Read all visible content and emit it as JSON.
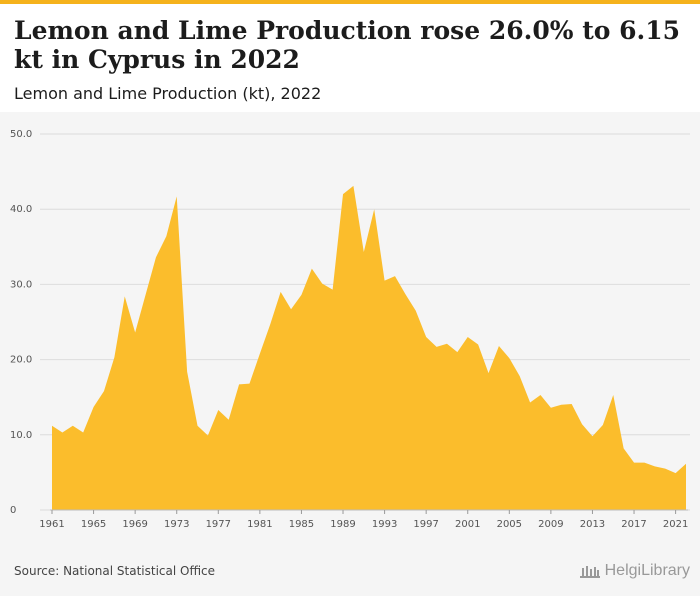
{
  "header": {
    "title": "Lemon and Lime Production rose 26.0% to 6.15 kt in Cyprus in 2022",
    "subtitle": "Lemon and Lime Production (kt), 2022"
  },
  "footer": {
    "source": "Source: National Statistical Office",
    "brand": "HelgiLibrary",
    "brand_icon": "library-building-icon"
  },
  "colors": {
    "accent": "#f5b21c",
    "area_fill": "#fbbd2c",
    "background": "#f5f5f5",
    "grid": "#dcdcdc"
  },
  "chart_data": {
    "type": "area",
    "title": "Lemon and Lime Production (kt), 2022",
    "xlabel": "",
    "ylabel": "",
    "ylim": [
      0,
      50
    ],
    "y_ticks": [
      "0",
      "10.0",
      "20.0",
      "30.0",
      "40.0",
      "50.0"
    ],
    "x_tick_labels": [
      "1961",
      "1965",
      "1969",
      "1973",
      "1977",
      "1981",
      "1985",
      "1989",
      "1993",
      "1997",
      "2001",
      "2005",
      "2009",
      "2013",
      "2017",
      "2021"
    ],
    "grid": true,
    "series": [
      {
        "name": "",
        "x": [
          1961,
          1962,
          1963,
          1964,
          1965,
          1966,
          1967,
          1968,
          1969,
          1970,
          1971,
          1972,
          1973,
          1974,
          1975,
          1976,
          1977,
          1978,
          1979,
          1980,
          1981,
          1982,
          1983,
          1984,
          1985,
          1986,
          1987,
          1988,
          1989,
          1990,
          1991,
          1992,
          1993,
          1994,
          1995,
          1996,
          1997,
          1998,
          1999,
          2000,
          2001,
          2002,
          2003,
          2004,
          2005,
          2006,
          2007,
          2008,
          2009,
          2010,
          2011,
          2012,
          2013,
          2014,
          2015,
          2016,
          2017,
          2018,
          2019,
          2020,
          2021,
          2022
        ],
        "values": [
          11.2,
          10.3,
          11.2,
          10.3,
          13.7,
          15.8,
          20.3,
          28.4,
          23.6,
          28.6,
          33.6,
          36.4,
          41.7,
          18.4,
          11.2,
          9.9,
          13.3,
          12.0,
          16.7,
          16.8,
          20.8,
          24.7,
          29.0,
          26.7,
          28.6,
          32.1,
          30.1,
          29.3,
          42.0,
          43.1,
          34.3,
          40.0,
          30.5,
          31.1,
          28.7,
          26.5,
          23.0,
          21.7,
          22.1,
          21.0,
          23.0,
          22.0,
          18.2,
          21.8,
          20.2,
          17.8,
          14.3,
          15.3,
          13.6,
          14.0,
          14.1,
          11.4,
          9.8,
          11.3,
          15.3,
          8.2,
          6.3,
          6.3,
          5.8,
          5.5,
          4.9,
          6.15
        ]
      }
    ]
  }
}
